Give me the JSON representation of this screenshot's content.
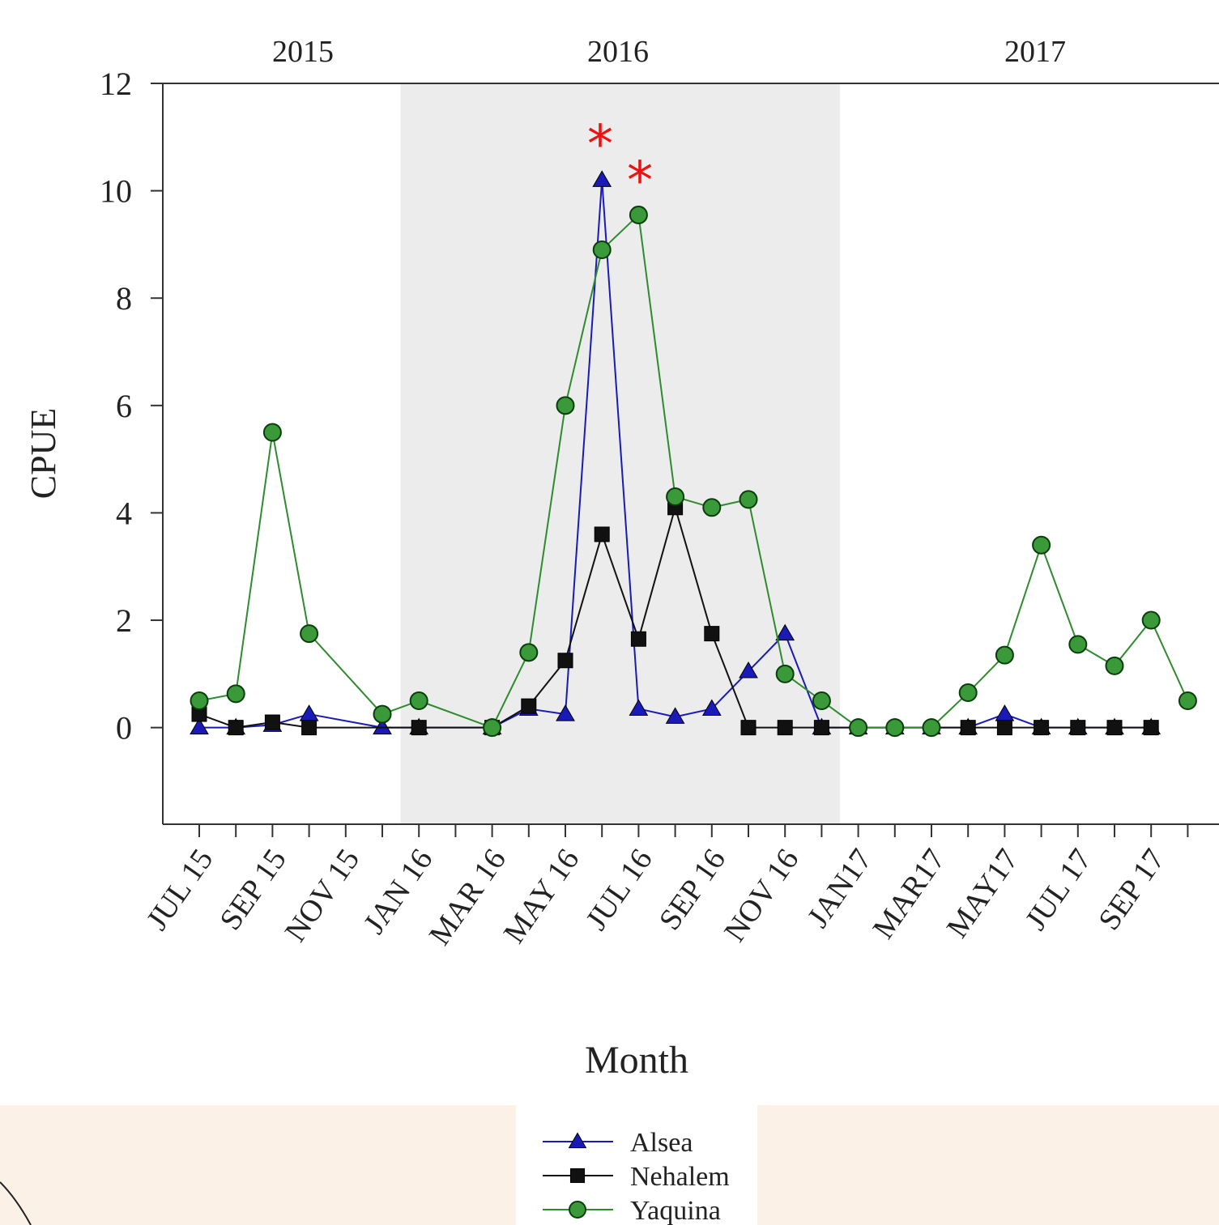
{
  "chart_data": {
    "type": "line",
    "x_label": "Month",
    "y_label": "CPUE",
    "annotations": [
      "2015",
      "2016",
      "2017"
    ],
    "markers": [
      "*",
      "*"
    ],
    "categories": [
      "JUL 15",
      null,
      "SEP 15",
      null,
      "NOV 15",
      null,
      "JAN 16",
      null,
      "MAR 16",
      null,
      "MAY 16",
      null,
      "JUL 16",
      null,
      "SEP 16",
      null,
      "NOV 16",
      null,
      "JAN17",
      null,
      "MAR17",
      null,
      "MAY17",
      null,
      "JUL 17",
      null,
      "SEP 17",
      null
    ],
    "series": [
      {
        "name": "Alsea",
        "color": "#1a1ab8",
        "marker": "triangle",
        "values": [
          0,
          0,
          0.05,
          0.25,
          null,
          0,
          0,
          null,
          0,
          0.35,
          0.25,
          10.2,
          0.35,
          0.2,
          0.35,
          1.05,
          1.75,
          0,
          0,
          0,
          0,
          0,
          0.25,
          0,
          0,
          0,
          0,
          null
        ]
      },
      {
        "name": "Nehalem",
        "color": "#111111",
        "marker": "square",
        "values": [
          0.25,
          0,
          0.1,
          0,
          null,
          null,
          0,
          null,
          0,
          0.4,
          1.25,
          3.6,
          1.65,
          4.1,
          1.75,
          0,
          0,
          0,
          null,
          null,
          null,
          0,
          0,
          0,
          0,
          0,
          0,
          null
        ]
      },
      {
        "name": "Yaquina",
        "color": "#2e8b2e",
        "marker": "circle",
        "values": [
          0.5,
          0.63,
          5.5,
          1.75,
          null,
          0.25,
          0.5,
          null,
          0,
          1.4,
          6,
          8.9,
          9.55,
          4.3,
          4.1,
          4.25,
          1.0,
          0.5,
          0,
          0,
          0,
          0.65,
          1.35,
          3.4,
          1.55,
          1.15,
          2.0,
          0.5
        ]
      }
    ],
    "ylim": [
      -1.8,
      12
    ],
    "yticks": [
      0,
      2,
      4,
      6,
      8,
      10,
      12
    ]
  }
}
